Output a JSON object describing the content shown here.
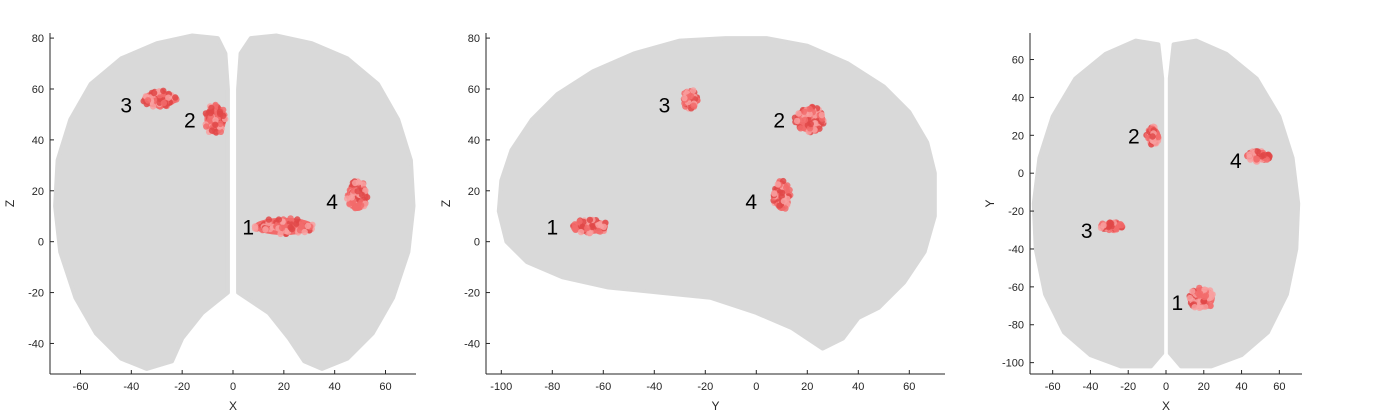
{
  "colors": {
    "brain": "#d9d9d9",
    "cluster_fill": "#f26b6b",
    "cluster_dark": "#e04848",
    "cluster_light": "#f8a0a0",
    "axis": "#262626"
  },
  "chart_data": [
    {
      "type": "scatter",
      "view": "coronal",
      "xlabel": "X",
      "ylabel": "Z",
      "xlim": [
        -72,
        72
      ],
      "ylim": [
        -52,
        82
      ],
      "xticks": [
        -60,
        -40,
        -20,
        0,
        20,
        40,
        60
      ],
      "yticks": [
        -40,
        -20,
        0,
        20,
        40,
        60,
        80
      ],
      "clusters": [
        {
          "label": "1",
          "center": [
            20,
            6
          ],
          "extent": [
            14,
            4
          ],
          "label_pos": [
            6,
            6
          ]
        },
        {
          "label": "2",
          "center": [
            -7,
            48
          ],
          "extent": [
            5,
            7
          ],
          "label_pos": [
            -17,
            48
          ]
        },
        {
          "label": "3",
          "center": [
            -29,
            56
          ],
          "extent": [
            8,
            4
          ],
          "label_pos": [
            -42,
            54
          ]
        },
        {
          "label": "4",
          "center": [
            49,
            18
          ],
          "extent": [
            5,
            7
          ],
          "label_pos": [
            39,
            16
          ]
        }
      ]
    },
    {
      "type": "scatter",
      "view": "sagittal",
      "xlabel": "Y",
      "ylabel": "Z",
      "xlim": [
        -106,
        74
      ],
      "ylim": [
        -52,
        82
      ],
      "xticks": [
        -100,
        -80,
        -60,
        -40,
        -20,
        0,
        20,
        40,
        60
      ],
      "yticks": [
        -40,
        -20,
        0,
        20,
        40,
        60,
        80
      ],
      "clusters": [
        {
          "label": "1",
          "center": [
            -65,
            6
          ],
          "extent": [
            8,
            3.5
          ],
          "label_pos": [
            -80,
            6
          ]
        },
        {
          "label": "2",
          "center": [
            21,
            48
          ],
          "extent": [
            7,
            6
          ],
          "label_pos": [
            9,
            48
          ]
        },
        {
          "label": "3",
          "center": [
            -26,
            56
          ],
          "extent": [
            3.5,
            4.5
          ],
          "label_pos": [
            -36,
            54
          ]
        },
        {
          "label": "4",
          "center": [
            10,
            18
          ],
          "extent": [
            4,
            7
          ],
          "label_pos": [
            -2,
            16
          ]
        }
      ]
    },
    {
      "type": "scatter",
      "view": "axial",
      "xlabel": "X",
      "ylabel": "Y",
      "xlim": [
        -72,
        72
      ],
      "ylim": [
        -106,
        74
      ],
      "xticks": [
        -60,
        -40,
        -20,
        0,
        20,
        40,
        60
      ],
      "yticks": [
        -100,
        -80,
        -60,
        -40,
        -20,
        0,
        20,
        40,
        60
      ],
      "clusters": [
        {
          "label": "1",
          "center": [
            19,
            -66
          ],
          "extent": [
            8,
            7
          ],
          "label_pos": [
            6,
            -68
          ]
        },
        {
          "label": "2",
          "center": [
            -7,
            20
          ],
          "extent": [
            4,
            6
          ],
          "label_pos": [
            -17,
            20
          ]
        },
        {
          "label": "3",
          "center": [
            -29,
            -28
          ],
          "extent": [
            7,
            2.5
          ],
          "label_pos": [
            -42,
            -30
          ]
        },
        {
          "label": "4",
          "center": [
            49,
            9
          ],
          "extent": [
            7,
            3.5
          ],
          "label_pos": [
            37,
            7
          ]
        }
      ]
    }
  ]
}
